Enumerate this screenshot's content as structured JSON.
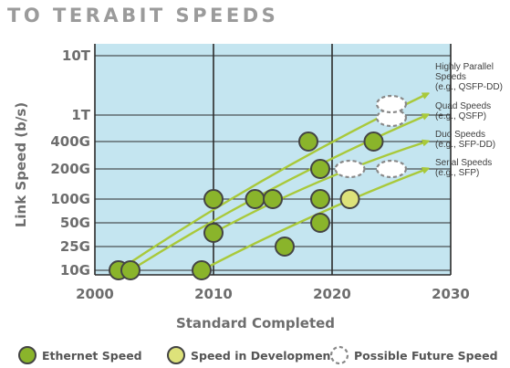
{
  "title": "TO TERABIT SPEEDS",
  "chart_data": {
    "type": "scatter",
    "xlabel": "Standard Completed",
    "ylabel": "Link Speed (b/s)",
    "x_ticks": [
      "2000",
      "2010",
      "2020",
      "2030"
    ],
    "xlim": [
      2000,
      2030
    ],
    "y_scale": "categorical log-like",
    "y_ticks": [
      "10G",
      "25G",
      "50G",
      "100G",
      "200G",
      "400G",
      "1T",
      "10T"
    ],
    "grid": true,
    "colors": {
      "plot_background": "#c4e5f0",
      "grid": "#2b2b2b",
      "ethernet_speed": "#8ab42b",
      "speed_in_development": "#dde27a",
      "trend_arrow": "#a9c93a",
      "possible_future": "#888888"
    },
    "series": [
      {
        "name": "Ethernet Speed",
        "points": [
          {
            "x": 2002,
            "y": "10G"
          },
          {
            "x": 2003,
            "y": "10G"
          },
          {
            "x": 2009,
            "y": "10G"
          },
          {
            "x": 2010,
            "y": "40G"
          },
          {
            "x": 2010,
            "y": "100G"
          },
          {
            "x": 2013.5,
            "y": "100G"
          },
          {
            "x": 2015,
            "y": "100G"
          },
          {
            "x": 2016,
            "y": "25G"
          },
          {
            "x": 2018,
            "y": "400G"
          },
          {
            "x": 2019,
            "y": "200G"
          },
          {
            "x": 2019,
            "y": "100G"
          },
          {
            "x": 2019,
            "y": "50G"
          },
          {
            "x": 2023.5,
            "y": "400G"
          }
        ]
      },
      {
        "name": "Speed in Development",
        "points": [
          {
            "x": 2021.5,
            "y": "100G"
          }
        ]
      },
      {
        "name": "Possible Future Speed",
        "points": [
          {
            "x": 2021.5,
            "y": "200G"
          },
          {
            "x": 2025,
            "y": "200G"
          },
          {
            "x": 2025,
            "y": "800G"
          },
          {
            "x": 2025,
            "y": "1.6T"
          }
        ]
      }
    ],
    "trend_lines": [
      {
        "label": "Highly Parallel Speeds (e.g., QSFP-DD)",
        "from": {
          "x": 2002,
          "y": "10G"
        },
        "to": {
          "x": 2028,
          "y": "2T"
        }
      },
      {
        "label": "Quad Speeds (e.g., QSFP)",
        "from": {
          "x": 2003,
          "y": "10G"
        },
        "to": {
          "x": 2028,
          "y": "1T"
        }
      },
      {
        "label": "Duo Speeds (e.g., SFP-DD)",
        "from": {
          "x": 2010,
          "y": "40G"
        },
        "to": {
          "x": 2028,
          "y": "400G"
        }
      },
      {
        "label": "Serial Speeds (e.g., SFP)",
        "from": {
          "x": 2009,
          "y": "10G"
        },
        "to": {
          "x": 2028,
          "y": "200G"
        }
      }
    ],
    "annotations": [
      {
        "lines": [
          "Highly Parallel",
          "Speeds",
          "(e.g., QSFP-DD)"
        ]
      },
      {
        "lines": [
          "Quad Speeds",
          "(e.g., QSFP)"
        ]
      },
      {
        "lines": [
          "Duo Speeds",
          "(e.g., SFP-DD)"
        ]
      },
      {
        "lines": [
          "Serial Speeds",
          "(e.g., SFP)"
        ]
      }
    ],
    "legend": {
      "placement": "bottom",
      "items": [
        "Ethernet Speed",
        "Speed in Development",
        "Possible Future Speed"
      ]
    }
  }
}
